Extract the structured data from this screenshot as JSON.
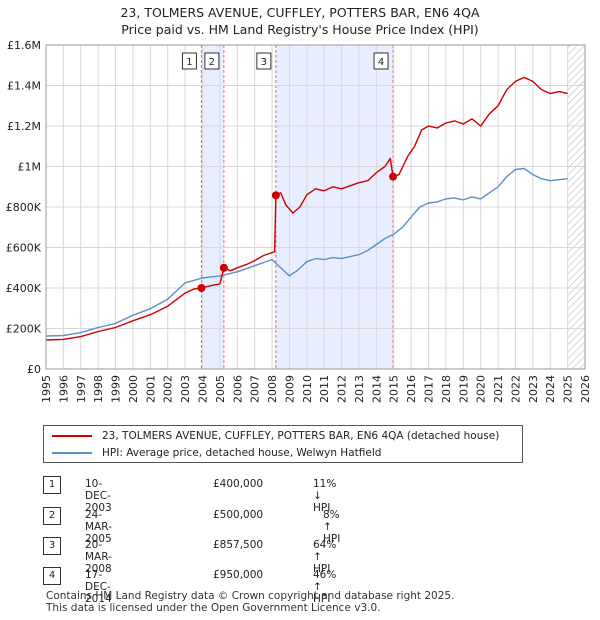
{
  "title": "23, TOLMERS AVENUE, CUFFLEY, POTTERS BAR, EN6 4QA",
  "subtitle": "Price paid vs. HM Land Registry's House Price Index (HPI)",
  "colors": {
    "property": "#cc0000",
    "hpi": "#5b8fc9",
    "shade": "#e8eeff",
    "marker_line": "#cc0000"
  },
  "chart_data": {
    "type": "line",
    "xlim": [
      1995,
      2026
    ],
    "ylim": [
      0,
      1600000
    ],
    "x_ticks": [
      "1995",
      "1996",
      "1997",
      "1998",
      "1999",
      "2000",
      "2001",
      "2002",
      "2003",
      "2004",
      "2005",
      "2006",
      "2007",
      "2008",
      "2009",
      "2010",
      "2011",
      "2012",
      "2013",
      "2014",
      "2015",
      "2016",
      "2017",
      "2018",
      "2019",
      "2020",
      "2021",
      "2022",
      "2023",
      "2024",
      "2025",
      "2026"
    ],
    "y_ticks": [
      {
        "value": 0,
        "label": "£0"
      },
      {
        "value": 200000,
        "label": "£200K"
      },
      {
        "value": 400000,
        "label": "£400K"
      },
      {
        "value": 600000,
        "label": "£600K"
      },
      {
        "value": 800000,
        "label": "£800K"
      },
      {
        "value": 1000000,
        "label": "£1M"
      },
      {
        "value": 1200000,
        "label": "£1.2M"
      },
      {
        "value": 1400000,
        "label": "£1.4M"
      },
      {
        "value": 1600000,
        "label": "£1.6M"
      }
    ],
    "shaded_ranges": [
      [
        2003.94,
        2005.23
      ],
      [
        2008.22,
        2014.96
      ]
    ],
    "hatch_from": 2025.0,
    "series": [
      {
        "name": "23, TOLMERS AVENUE, CUFFLEY, POTTERS BAR, EN6 4QA (detached house)",
        "color": "#cc0000",
        "points": [
          [
            1995.0,
            143000
          ],
          [
            1996.0,
            146000
          ],
          [
            1997.0,
            160000
          ],
          [
            1998.0,
            185000
          ],
          [
            1999.0,
            205000
          ],
          [
            2000.0,
            238000
          ],
          [
            2001.0,
            268000
          ],
          [
            2002.0,
            310000
          ],
          [
            2003.0,
            375000
          ],
          [
            2003.5,
            395000
          ],
          [
            2003.94,
            400000
          ],
          [
            2004.5,
            412000
          ],
          [
            2005.0,
            420000
          ],
          [
            2005.23,
            500000
          ],
          [
            2005.6,
            485000
          ],
          [
            2006.0,
            500000
          ],
          [
            2006.5,
            515000
          ],
          [
            2007.0,
            535000
          ],
          [
            2007.5,
            560000
          ],
          [
            2008.0,
            575000
          ],
          [
            2008.15,
            580000
          ],
          [
            2008.22,
            857500
          ],
          [
            2008.5,
            870000
          ],
          [
            2008.8,
            810000
          ],
          [
            2009.2,
            770000
          ],
          [
            2009.6,
            800000
          ],
          [
            2010.0,
            860000
          ],
          [
            2010.5,
            890000
          ],
          [
            2011.0,
            880000
          ],
          [
            2011.5,
            900000
          ],
          [
            2012.0,
            890000
          ],
          [
            2012.5,
            905000
          ],
          [
            2013.0,
            920000
          ],
          [
            2013.5,
            930000
          ],
          [
            2014.0,
            970000
          ],
          [
            2014.5,
            1000000
          ],
          [
            2014.8,
            1040000
          ],
          [
            2014.96,
            950000
          ],
          [
            2015.3,
            960000
          ],
          [
            2015.8,
            1050000
          ],
          [
            2016.2,
            1100000
          ],
          [
            2016.6,
            1180000
          ],
          [
            2017.0,
            1200000
          ],
          [
            2017.5,
            1190000
          ],
          [
            2018.0,
            1215000
          ],
          [
            2018.5,
            1225000
          ],
          [
            2019.0,
            1210000
          ],
          [
            2019.5,
            1235000
          ],
          [
            2020.0,
            1200000
          ],
          [
            2020.5,
            1260000
          ],
          [
            2021.0,
            1300000
          ],
          [
            2021.5,
            1380000
          ],
          [
            2022.0,
            1420000
          ],
          [
            2022.5,
            1440000
          ],
          [
            2023.0,
            1420000
          ],
          [
            2023.5,
            1380000
          ],
          [
            2024.0,
            1360000
          ],
          [
            2024.5,
            1370000
          ],
          [
            2025.0,
            1360000
          ]
        ]
      },
      {
        "name": "HPI: Average price, detached house, Welwyn Hatfield",
        "color": "#5b8fc9",
        "points": [
          [
            1995.0,
            163000
          ],
          [
            1996.0,
            165000
          ],
          [
            1997.0,
            180000
          ],
          [
            1998.0,
            205000
          ],
          [
            1999.0,
            225000
          ],
          [
            2000.0,
            265000
          ],
          [
            2001.0,
            298000
          ],
          [
            2002.0,
            345000
          ],
          [
            2003.0,
            425000
          ],
          [
            2004.0,
            450000
          ],
          [
            2005.0,
            460000
          ],
          [
            2006.0,
            480000
          ],
          [
            2007.0,
            510000
          ],
          [
            2008.0,
            540000
          ],
          [
            2008.5,
            500000
          ],
          [
            2009.0,
            460000
          ],
          [
            2009.5,
            490000
          ],
          [
            2010.0,
            530000
          ],
          [
            2010.5,
            545000
          ],
          [
            2011.0,
            540000
          ],
          [
            2011.5,
            550000
          ],
          [
            2012.0,
            545000
          ],
          [
            2012.5,
            555000
          ],
          [
            2013.0,
            565000
          ],
          [
            2013.5,
            585000
          ],
          [
            2014.0,
            615000
          ],
          [
            2014.5,
            645000
          ],
          [
            2015.0,
            665000
          ],
          [
            2015.5,
            700000
          ],
          [
            2016.0,
            750000
          ],
          [
            2016.5,
            800000
          ],
          [
            2017.0,
            820000
          ],
          [
            2017.5,
            825000
          ],
          [
            2018.0,
            840000
          ],
          [
            2018.5,
            845000
          ],
          [
            2019.0,
            835000
          ],
          [
            2019.5,
            850000
          ],
          [
            2020.0,
            840000
          ],
          [
            2020.5,
            870000
          ],
          [
            2021.0,
            900000
          ],
          [
            2021.5,
            950000
          ],
          [
            2022.0,
            985000
          ],
          [
            2022.5,
            990000
          ],
          [
            2023.0,
            960000
          ],
          [
            2023.5,
            940000
          ],
          [
            2024.0,
            930000
          ],
          [
            2024.5,
            935000
          ],
          [
            2025.0,
            940000
          ]
        ]
      }
    ],
    "transactions": [
      {
        "num": "1",
        "x": 2003.94,
        "y": 400000
      },
      {
        "num": "2",
        "x": 2005.23,
        "y": 500000
      },
      {
        "num": "3",
        "x": 2008.22,
        "y": 857500
      },
      {
        "num": "4",
        "x": 2014.96,
        "y": 950000
      }
    ]
  },
  "legend": {
    "property_label": "23, TOLMERS AVENUE, CUFFLEY, POTTERS BAR, EN6 4QA (detached house)",
    "hpi_label": "HPI: Average price, detached house, Welwyn Hatfield"
  },
  "table": [
    {
      "num": "1",
      "date": "10-DEC-2003",
      "price": "£400,000",
      "hpi": "11% ↓ HPI"
    },
    {
      "num": "2",
      "date": "24-MAR-2005",
      "price": "£500,000",
      "hpi": "8% ↑ HPI"
    },
    {
      "num": "3",
      "date": "20-MAR-2008",
      "price": "£857,500",
      "hpi": "64% ↑ HPI"
    },
    {
      "num": "4",
      "date": "17-DEC-2014",
      "price": "£950,000",
      "hpi": "46% ↑ HPI"
    }
  ],
  "footer": {
    "line1": "Contains HM Land Registry data © Crown copyright and database right 2025.",
    "line2": "This data is licensed under the Open Government Licence v3.0."
  }
}
